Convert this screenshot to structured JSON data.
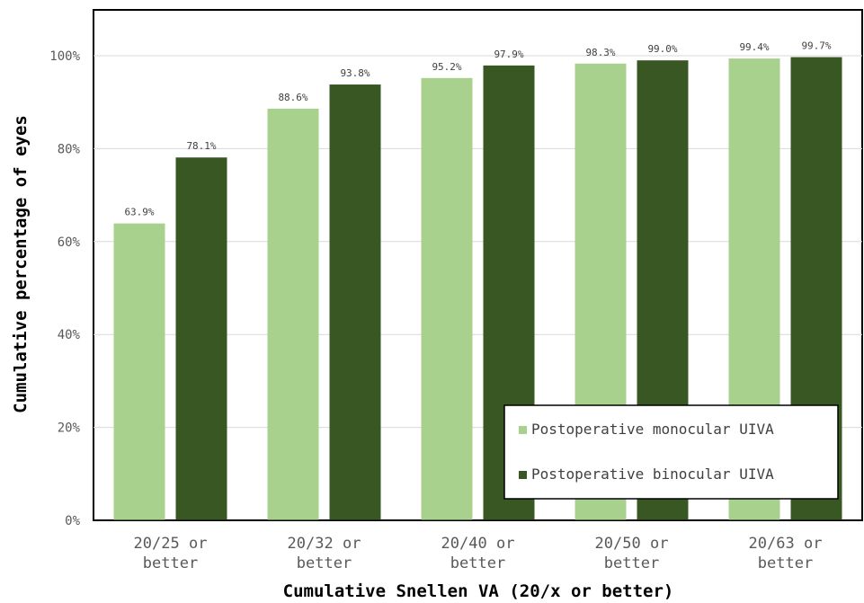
{
  "chart_data": {
    "type": "bar",
    "xlabel": "Cumulative Snellen VA (20/x or better)",
    "ylabel": "Cumulative percentage of eyes",
    "ylim": [
      0,
      100
    ],
    "yticks": [
      "0%",
      "20%",
      "40%",
      "60%",
      "80%",
      "100%"
    ],
    "ytick_values": [
      0,
      20,
      40,
      60,
      80,
      100
    ],
    "categories": [
      [
        "20/25 or",
        "better"
      ],
      [
        "20/32 or",
        "better"
      ],
      [
        "20/40 or",
        "better"
      ],
      [
        "20/50 or",
        "better"
      ],
      [
        "20/63 or",
        "better"
      ]
    ],
    "series": [
      {
        "name": "Postoperative monocular UIVA",
        "color": "#a9d18e",
        "values": [
          63.9,
          88.6,
          95.2,
          98.3,
          99.4
        ],
        "labels": [
          "63.9%",
          "88.6%",
          "95.2%",
          "98.3%",
          "99.4%"
        ]
      },
      {
        "name": "Postoperative binocular UIVA",
        "color": "#385723",
        "values": [
          78.1,
          93.8,
          97.9,
          99.0,
          99.7
        ],
        "labels": [
          "78.1%",
          "93.8%",
          "97.9%",
          "99.0%",
          "99.7%"
        ]
      }
    ],
    "grid": true,
    "legend_position": "bottom-right"
  }
}
